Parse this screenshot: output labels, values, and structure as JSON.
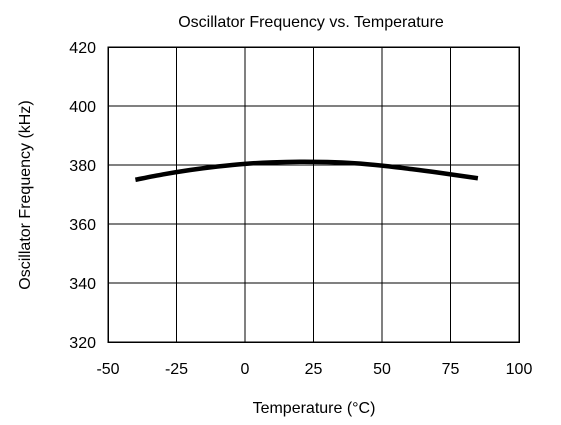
{
  "chart_data": {
    "type": "line",
    "title": "Oscillator Frequency vs. Temperature",
    "xlabel": "Temperature (°C)",
    "ylabel": "Oscillator Frequency (kHz)",
    "xlim": [
      -50,
      100
    ],
    "ylim": [
      320,
      420
    ],
    "xticks": [
      -50,
      -25,
      0,
      25,
      50,
      75,
      100
    ],
    "yticks": [
      320,
      340,
      360,
      380,
      400,
      420
    ],
    "grid": true,
    "series": [
      {
        "x": [
          -40,
          -30,
          -20,
          -10,
          0,
          10,
          20,
          30,
          40,
          50,
          60,
          70,
          85
        ],
        "values": [
          375.0,
          376.8,
          378.3,
          379.5,
          380.4,
          380.9,
          381.1,
          381.0,
          380.6,
          379.8,
          378.7,
          377.5,
          375.5
        ]
      }
    ]
  }
}
